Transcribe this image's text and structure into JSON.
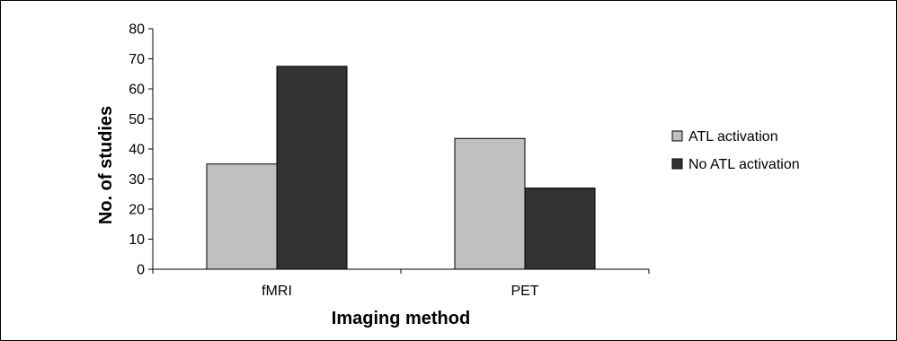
{
  "chart_data": {
    "type": "bar",
    "title": "",
    "xlabel": "Imaging method",
    "ylabel": "No. of studies",
    "categories": [
      "fMRI",
      "PET"
    ],
    "series": [
      {
        "name": "ATL activation",
        "values": [
          35,
          43.5
        ]
      },
      {
        "name": "No ATL activation",
        "values": [
          67.5,
          27
        ]
      }
    ],
    "ylim": [
      0,
      80
    ],
    "yticks": [
      0,
      10,
      20,
      30,
      40,
      50,
      60,
      70,
      80
    ],
    "grid": false,
    "legend_position": "right"
  },
  "colors": {
    "ATL activation": "#c0c0c0",
    "No ATL activation": "#333333",
    "axis": "#000000",
    "bar_outline": "#000000"
  }
}
